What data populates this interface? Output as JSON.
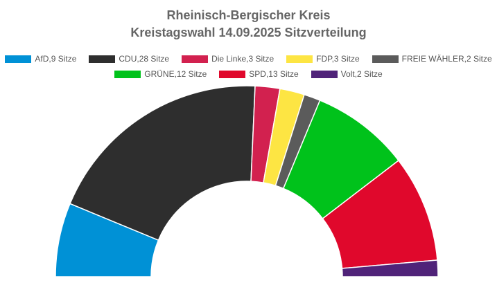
{
  "chart_data": {
    "type": "parliament-arc",
    "title": "Rheinisch-Bergischer Kreis",
    "subtitle": "Kreistagswahl 14.09.2025 Sitzverteilung",
    "unit": "Sitze",
    "legend_position": "top",
    "series": [
      {
        "name": "AfD",
        "value": 9,
        "color": "#0091d6"
      },
      {
        "name": "CDU",
        "value": 28,
        "color": "#2e2e2e"
      },
      {
        "name": "Die Linke",
        "value": 3,
        "color": "#d2214f"
      },
      {
        "name": "FDP",
        "value": 3,
        "color": "#fde543"
      },
      {
        "name": "FREIE WÄHLER",
        "value": 2,
        "color": "#5b5b5b"
      },
      {
        "name": "GRÜNE",
        "value": 12,
        "color": "#00c21b"
      },
      {
        "name": "SPD",
        "value": 13,
        "color": "#e0082c"
      },
      {
        "name": "Volt",
        "value": 2,
        "color": "#502379"
      }
    ],
    "legend_rows": [
      [
        0,
        1,
        2,
        3,
        4
      ],
      [
        5,
        6,
        7
      ]
    ]
  }
}
